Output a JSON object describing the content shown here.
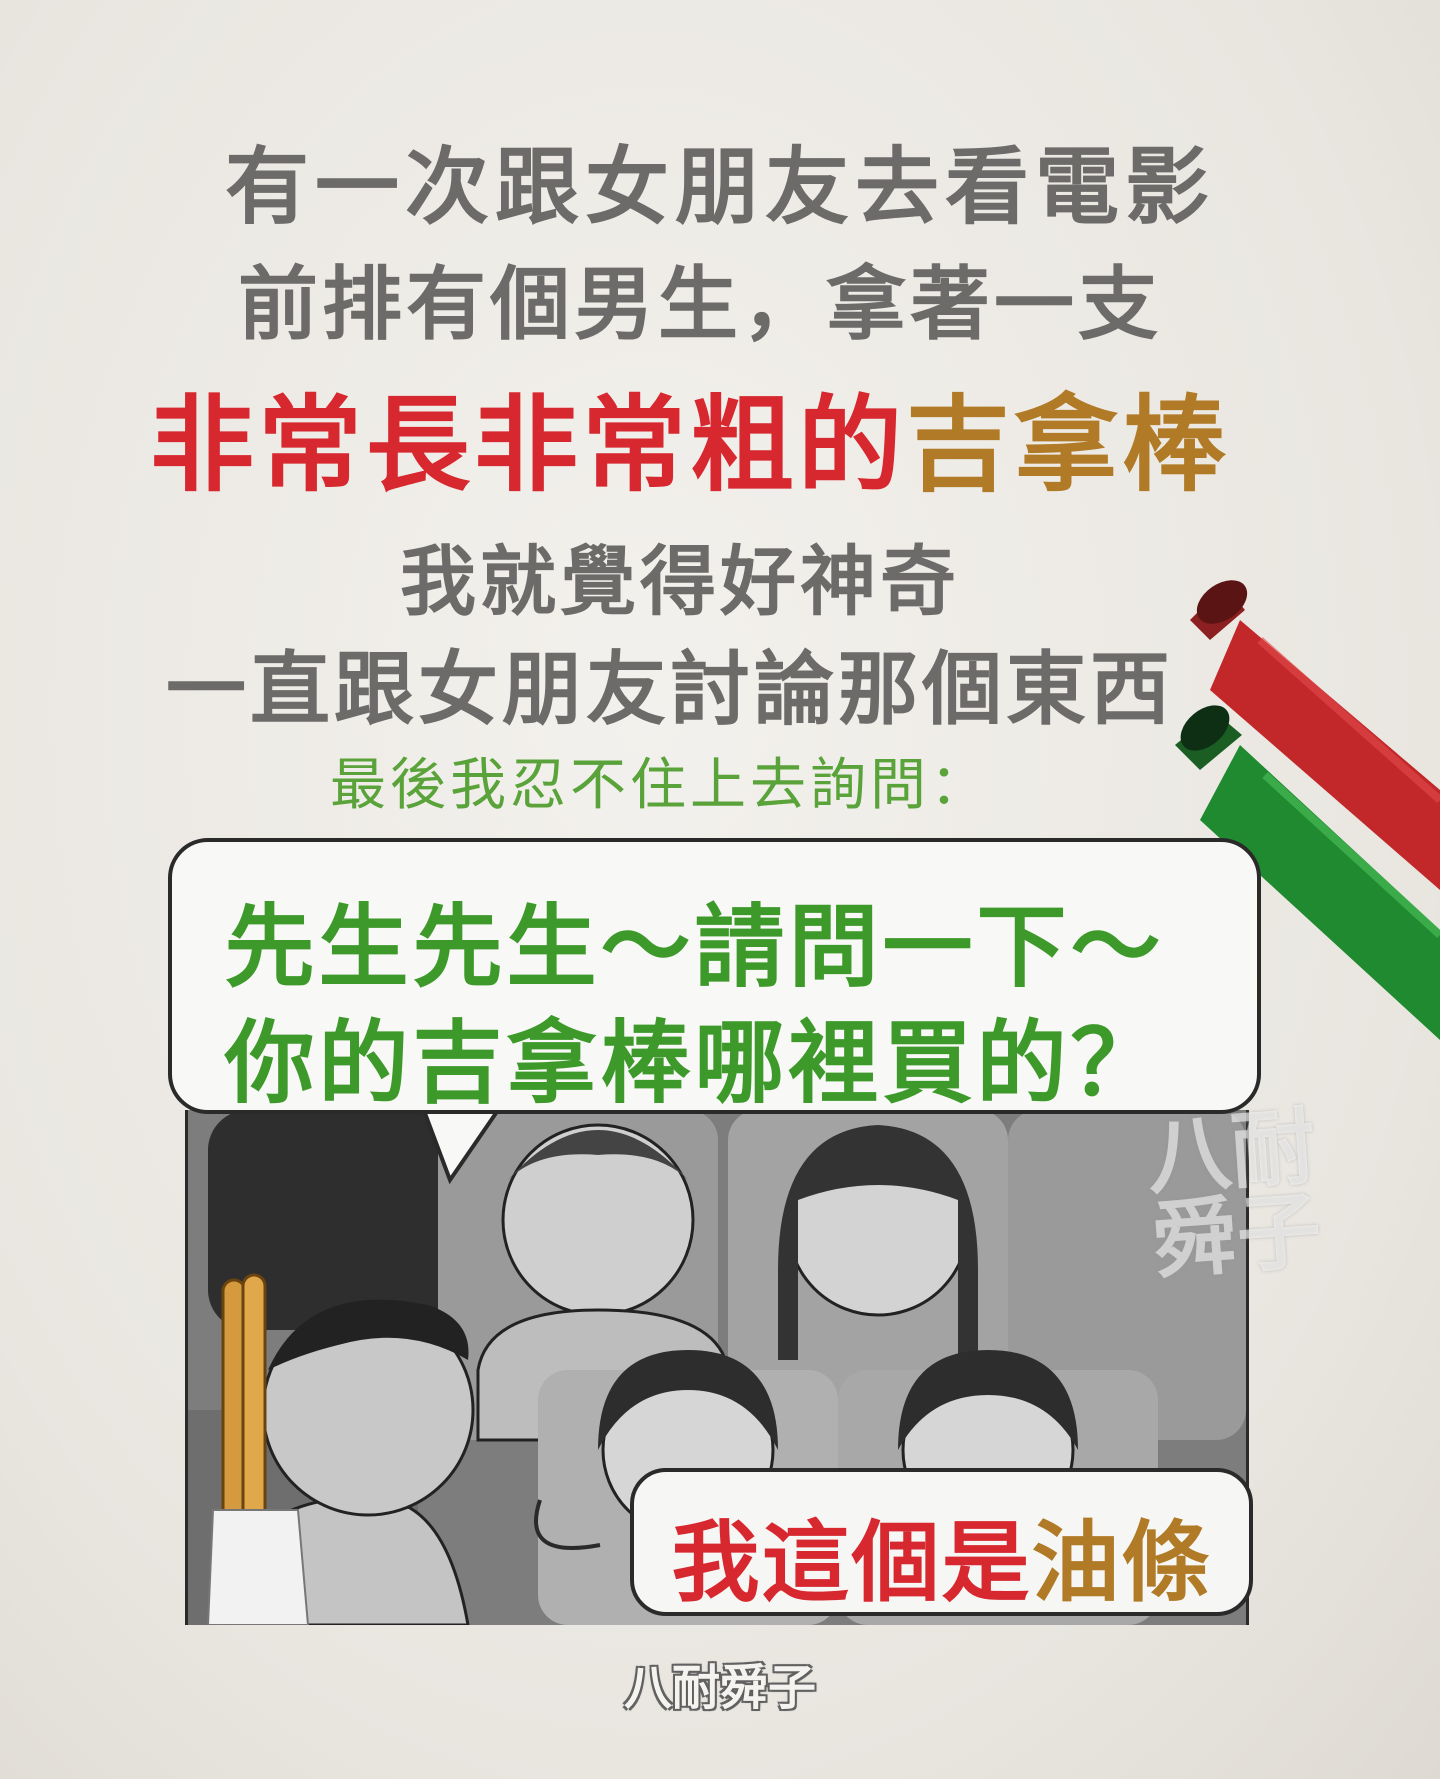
{
  "lines": {
    "line1": "有一次跟女朋友去看電影",
    "line2": "前排有個男生，拿著一支",
    "line3_red": "非常長非常粗的",
    "line3_brown": "吉拿棒",
    "line4": "我就覺得好神奇",
    "line5": "一直跟女朋友討論那個東西",
    "line6": "最後我忍不住上去詢問："
  },
  "speech_top": {
    "line1": "先生先生～請問一下～",
    "line2": "你的吉拿棒哪裡買的？"
  },
  "speech_bottom": {
    "red": "我這個是",
    "brown": "油條"
  },
  "watermark": {
    "large_line1": "八耐",
    "large_line2": "舜子",
    "small": "八耐舜子"
  },
  "colors": {
    "gray_text": "#6c6b69",
    "red": "#d7272f",
    "brown": "#b07a26",
    "green": "#5aa33a",
    "marker_red": "#c2272a",
    "marker_green": "#1f8a2f"
  },
  "icons": [
    "red-marker-icon",
    "green-marker-icon",
    "churro-icon"
  ]
}
